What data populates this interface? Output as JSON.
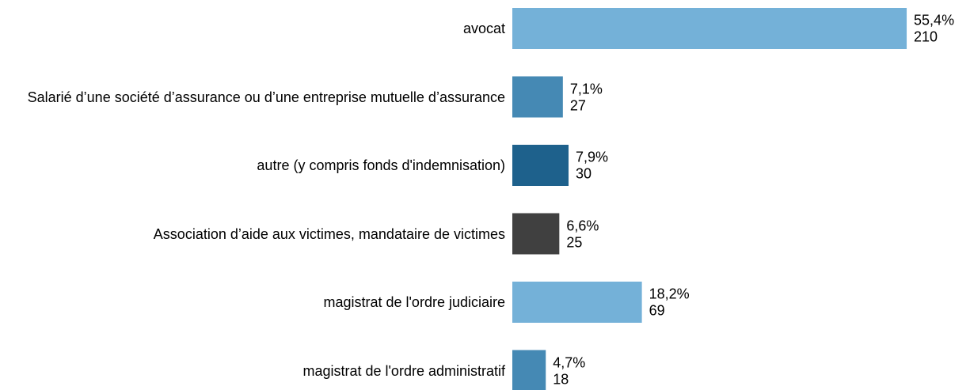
{
  "chart_data": {
    "type": "bar",
    "categories": [
      "avocat",
      "Salarié d’une société d’assurance ou d’une entreprise mutuelle d’assurance",
      "autre (y compris fonds d'indemnisation)",
      "Association d’aide aux victimes, mandataire de victimes",
      "magistrat de l'ordre judiciaire",
      "magistrat de l'ordre administratif"
    ],
    "values": [
      55.4,
      7.1,
      7.9,
      6.6,
      18.2,
      4.7
    ],
    "value_labels": [
      "55,4%",
      "7,1%",
      "7,9%",
      "6,6%",
      "18,2%",
      "4,7%"
    ],
    "counts": [
      210,
      27,
      30,
      25,
      69,
      18
    ],
    "colors": [
      "#74b1d8",
      "#4589b4",
      "#1e618c",
      "#404040",
      "#74b1d8",
      "#4589b4"
    ]
  }
}
